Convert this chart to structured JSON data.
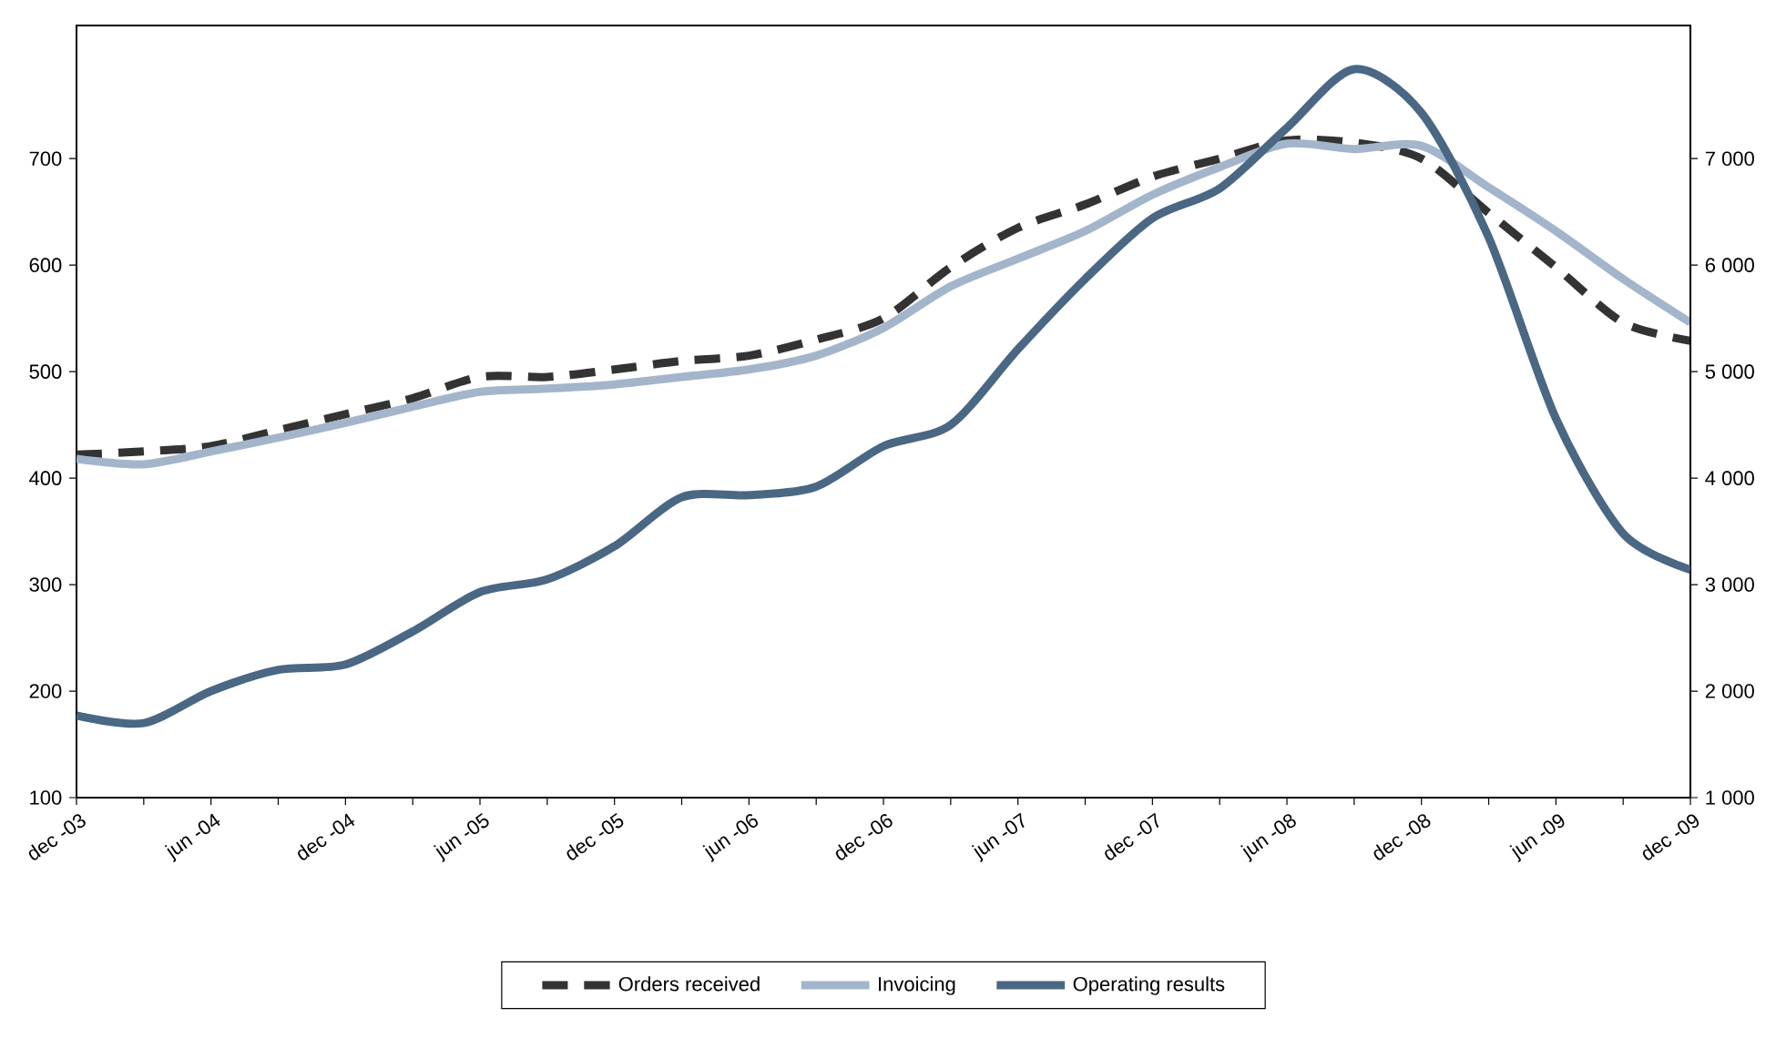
{
  "chart_data": {
    "type": "line",
    "categories": [
      "dec -03",
      null,
      "jun -04",
      null,
      "dec -04",
      null,
      "jun -05",
      null,
      "dec -05",
      null,
      "jun -06",
      null,
      "dec -06",
      null,
      "jun -07",
      null,
      "dec -07",
      null,
      "jun -08",
      null,
      "dec -08",
      null,
      "jun -09",
      null,
      "dec -09"
    ],
    "series": [
      {
        "name": "Orders received",
        "color": "#333333",
        "line_style": "dashed",
        "values": [
          422,
          425,
          430,
          445,
          460,
          475,
          495,
          495,
          502,
          510,
          515,
          530,
          550,
          598,
          635,
          657,
          683,
          700,
          717,
          715,
          700,
          649,
          598,
          546,
          529
        ]
      },
      {
        "name": "Invoicing",
        "color": "#a3b5cb",
        "line_style": "solid",
        "values": [
          418,
          413,
          425,
          438,
          452,
          467,
          481,
          484,
          488,
          495,
          502,
          515,
          541,
          580,
          606,
          632,
          666,
          692,
          714,
          709,
          712,
          673,
          632,
          587,
          546
        ]
      },
      {
        "name": "Operating results",
        "color": "#4a6784",
        "line_style": "solid",
        "axis": "y2",
        "values": [
          1770,
          1700,
          2000,
          2200,
          2250,
          2560,
          2930,
          3050,
          3360,
          3820,
          3840,
          3920,
          4300,
          4500,
          5210,
          5870,
          6440,
          6720,
          7290,
          7840,
          7430,
          6260,
          4560,
          3480,
          3140
        ]
      }
    ],
    "ylim": [
      100,
      825
    ],
    "yticks": [
      100,
      200,
      300,
      400,
      500,
      600,
      700
    ],
    "y2lim": [
      1000,
      8250
    ],
    "y2ticks": [
      {
        "value": 1000,
        "label": "1 000"
      },
      {
        "value": 2000,
        "label": "2 000"
      },
      {
        "value": 3000,
        "label": "3 000"
      },
      {
        "value": 4000,
        "label": "4 000"
      },
      {
        "value": 5000,
        "label": "5 000"
      },
      {
        "value": 6000,
        "label": "6 000"
      },
      {
        "value": 7000,
        "label": "7 000"
      }
    ],
    "legend": "bottom"
  }
}
